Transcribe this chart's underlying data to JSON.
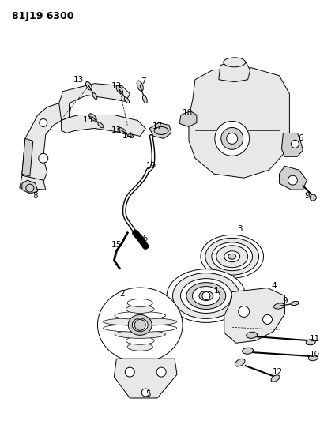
{
  "title": "81J19 6300",
  "bg": "#ffffff",
  "lc": "#000000",
  "tc": "#000000",
  "fig_w": 4.05,
  "fig_h": 5.33,
  "dpi": 100,
  "lw": 0.7,
  "fs": 7.5,
  "title_fs": 9,
  "gray_fill": "#e8e8e8",
  "mid_gray": "#d0d0d0",
  "dark_gray": "#b0b0b0"
}
